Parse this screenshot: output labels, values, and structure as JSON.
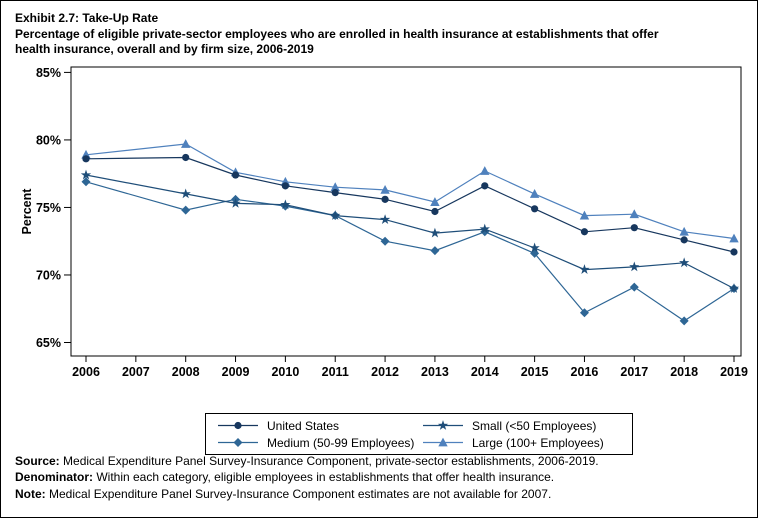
{
  "title": {
    "line1": "Exhibit 2.7: Take-Up Rate",
    "line2": "Percentage of eligible private-sector employees who are enrolled in health insurance at establishments that offer",
    "line3": "health insurance, overall and by firm size, 2006-2019"
  },
  "chart_data": {
    "type": "line",
    "title": "Exhibit 2.7: Take-Up Rate",
    "ylabel": "Percent",
    "x_ticks": [
      2006,
      2007,
      2008,
      2009,
      2010,
      2011,
      2012,
      2013,
      2014,
      2015,
      2016,
      2017,
      2018,
      2019
    ],
    "data_x": [
      2006,
      2008,
      2009,
      2010,
      2011,
      2012,
      2013,
      2014,
      2015,
      2016,
      2017,
      2018,
      2019
    ],
    "ylim": [
      64.0,
      85.4
    ],
    "y_ticks": [
      65,
      70,
      75,
      80,
      85
    ],
    "y_suffix": "%",
    "grid": false,
    "legend_position": "bottom",
    "frame_color": "#000000",
    "series": [
      {
        "name": "United States",
        "marker": "circle",
        "color": "#17375e",
        "values": [
          78.6,
          78.7,
          77.4,
          76.6,
          76.1,
          75.6,
          74.7,
          76.6,
          74.9,
          73.2,
          73.5,
          72.6,
          71.7
        ]
      },
      {
        "name": "Small (<50 Employees)",
        "marker": "star",
        "color": "#1f4e79",
        "values": [
          77.4,
          76.0,
          75.3,
          75.2,
          74.4,
          74.1,
          73.1,
          73.4,
          72.0,
          70.4,
          70.6,
          70.9,
          69.0
        ]
      },
      {
        "name": "Medium (50-99 Employees)",
        "marker": "diamond",
        "color": "#2e6695",
        "values": [
          76.9,
          74.8,
          75.6,
          75.1,
          74.4,
          72.5,
          71.8,
          73.2,
          71.6,
          67.2,
          69.1,
          66.6,
          69.0
        ]
      },
      {
        "name": "Large (100+ Employees)",
        "marker": "triangle",
        "color": "#4f81bd",
        "values": [
          78.9,
          79.7,
          77.6,
          76.9,
          76.5,
          76.3,
          75.4,
          77.7,
          76.0,
          74.4,
          74.5,
          73.2,
          72.7
        ]
      }
    ]
  },
  "notes": [
    {
      "prefix": "Source:",
      "text": " Medical Expenditure Panel Survey-Insurance Component, private-sector establishments, 2006-2019."
    },
    {
      "prefix": "Denominator:",
      "text": " Within each category, eligible employees in establishments that offer health insurance."
    },
    {
      "prefix": "Note:",
      "text": " Medical Expenditure Panel Survey-Insurance Component estimates are not available for 2007."
    }
  ]
}
